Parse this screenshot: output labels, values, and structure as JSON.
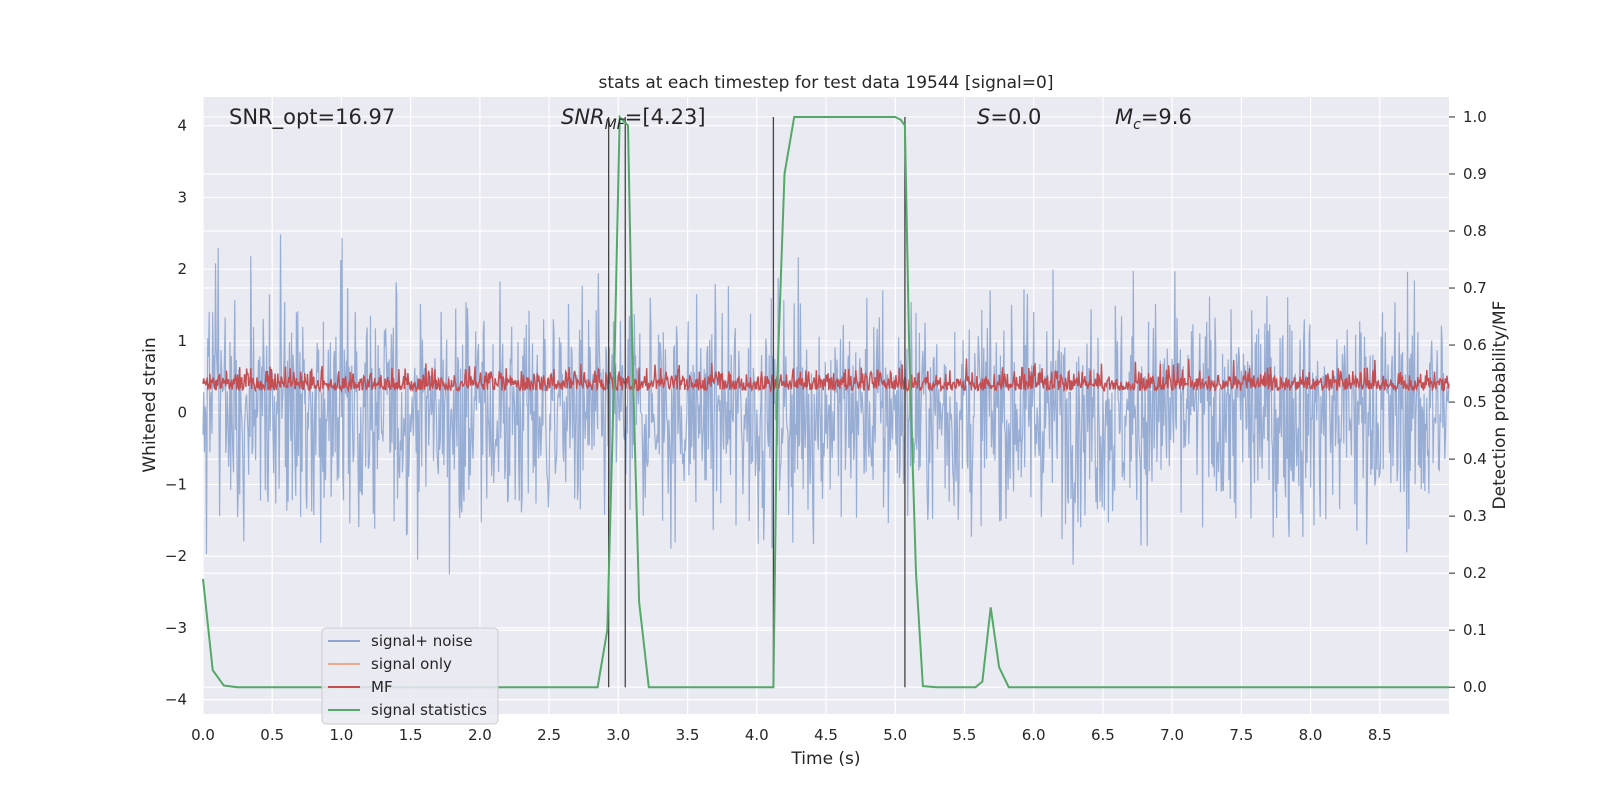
{
  "chart_data": {
    "type": "line",
    "title": "stats at each timestep for test data 19544 [signal=0]",
    "xlabel": "Time (s)",
    "ylabel": "Whitened strain",
    "ylabel_right": "Detection probability/MF",
    "xlim": [
      0.0,
      9.0
    ],
    "ylim": [
      -4.2,
      4.4
    ],
    "ylim_right": [
      -0.047,
      1.035
    ],
    "x_ticks": [
      "0.0",
      "0.5",
      "1.0",
      "1.5",
      "2.0",
      "2.5",
      "3.0",
      "3.5",
      "4.0",
      "4.5",
      "5.0",
      "5.5",
      "6.0",
      "6.5",
      "7.0",
      "7.5",
      "8.0",
      "8.5"
    ],
    "y_ticks": [
      "4",
      "3",
      "2",
      "1",
      "0",
      "−1",
      "−2",
      "−3",
      "−4"
    ],
    "y_ticks_right": [
      "1.0",
      "0.9",
      "0.8",
      "0.7",
      "0.6",
      "0.5",
      "0.4",
      "0.3",
      "0.2",
      "0.1",
      "0.0"
    ],
    "grid": true,
    "legend_position": "lower-left",
    "annotations": {
      "snr_opt": "SNR_opt=16.97",
      "snr_mf_base": "SNR",
      "snr_mf_sub": "MF",
      "snr_mf_value": "=[4.23]",
      "s_symbol": "S",
      "s_value": "=0.0",
      "mc_symbol": "M",
      "mc_sub": "c",
      "mc_value": "=9.6"
    },
    "series": [
      {
        "name": "signal+ noise",
        "color": "#8fa6d0",
        "description_range": [
          -3.9,
          4.0
        ]
      },
      {
        "name": "signal only",
        "color": "#f0a88a",
        "values": []
      },
      {
        "name": "MF",
        "color": "#c44e52",
        "approx_range_right": [
          0.5,
          0.6
        ]
      },
      {
        "name": "signal statistics",
        "color": "#55a868",
        "points_right": [
          [
            0.0,
            0.19
          ],
          [
            0.07,
            0.03
          ],
          [
            0.15,
            0.003
          ],
          [
            0.25,
            0.0
          ],
          [
            2.85,
            0.0
          ],
          [
            2.92,
            0.1
          ],
          [
            2.97,
            0.55
          ],
          [
            3.01,
            1.0
          ],
          [
            3.07,
            0.985
          ],
          [
            3.1,
            0.6
          ],
          [
            3.15,
            0.15
          ],
          [
            3.22,
            0.0
          ],
          [
            4.12,
            0.0
          ],
          [
            4.15,
            0.55
          ],
          [
            4.2,
            0.9
          ],
          [
            4.27,
            1.0
          ],
          [
            5.0,
            1.0
          ],
          [
            5.04,
            0.995
          ],
          [
            5.07,
            0.985
          ],
          [
            5.1,
            0.6
          ],
          [
            5.15,
            0.2
          ],
          [
            5.2,
            0.002
          ],
          [
            5.3,
            0.0
          ],
          [
            5.58,
            0.0
          ],
          [
            5.63,
            0.01
          ],
          [
            5.69,
            0.14
          ],
          [
            5.75,
            0.035
          ],
          [
            5.82,
            0.0
          ],
          [
            9.0,
            0.0
          ]
        ]
      }
    ],
    "vertical_lines_x": [
      2.93,
      3.05,
      4.12,
      5.07
    ]
  }
}
